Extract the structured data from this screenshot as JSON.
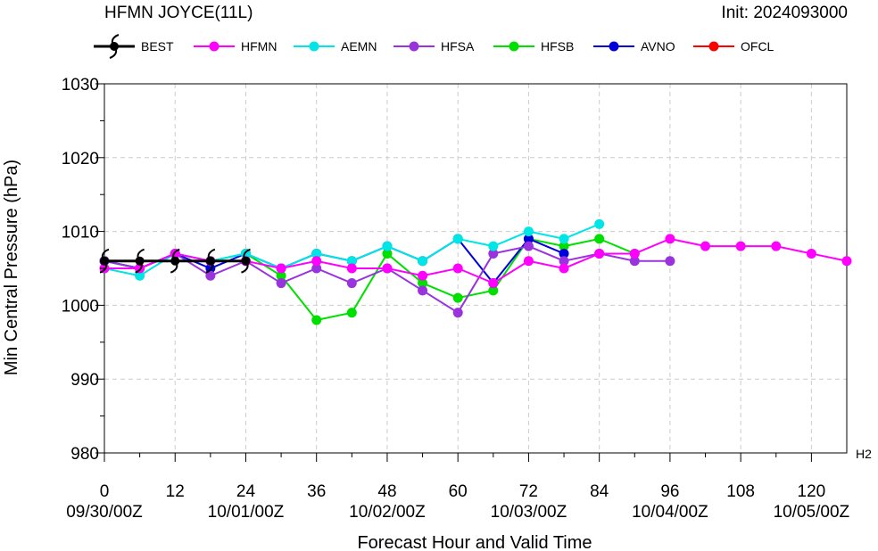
{
  "header": {
    "title": "HFMN JOYCE(11L)",
    "init": "Init: 2024093000",
    "corner_label": "H2"
  },
  "legend": [
    {
      "name": "BEST",
      "color": "#000000",
      "icon": "hurricane-symbol"
    },
    {
      "name": "HFMN",
      "color": "#ff00ff",
      "icon": "dot"
    },
    {
      "name": "AEMN",
      "color": "#00e5e5",
      "icon": "dot"
    },
    {
      "name": "HFSA",
      "color": "#9933dd",
      "icon": "dot"
    },
    {
      "name": "HFSB",
      "color": "#00e000",
      "icon": "dot"
    },
    {
      "name": "AVNO",
      "color": "#0000dd",
      "icon": "dot"
    },
    {
      "name": "OFCL",
      "color": "#ff0000",
      "icon": "dot"
    }
  ],
  "chart_data": {
    "type": "line",
    "xlabel": "Forecast Hour and Valid Time",
    "ylabel": "Min Central Pressure (hPa)",
    "xlim": [
      0,
      126
    ],
    "ylim": [
      980,
      1030
    ],
    "grid": true,
    "legend_position": "top",
    "x_ticks": [
      0,
      12,
      24,
      36,
      48,
      60,
      72,
      84,
      96,
      108,
      120
    ],
    "y_ticks": [
      980,
      990,
      1000,
      1010,
      1020,
      1030
    ],
    "date_ticks": [
      {
        "x": 0,
        "label": "09/30/00Z"
      },
      {
        "x": 24,
        "label": "10/01/00Z"
      },
      {
        "x": 48,
        "label": "10/02/00Z"
      },
      {
        "x": 72,
        "label": "10/03/00Z"
      },
      {
        "x": 96,
        "label": "10/04/00Z"
      },
      {
        "x": 120,
        "label": "10/05/00Z"
      }
    ],
    "series": [
      {
        "name": "HFSB",
        "color": "#00e000",
        "x": [
          0,
          6,
          12,
          18,
          24,
          30,
          36,
          42,
          48,
          54,
          60,
          66,
          72,
          78,
          84,
          90
        ],
        "y": [
          1006,
          1005,
          1007,
          1006,
          1007,
          1004,
          998,
          999,
          1007,
          1003,
          1001,
          1002,
          1009,
          1008,
          1009,
          1007
        ]
      },
      {
        "name": "AVNO",
        "color": "#0000dd",
        "x": [
          0,
          6,
          12,
          18,
          24,
          30,
          36,
          42,
          48,
          54,
          60,
          66,
          72,
          78
        ],
        "y": [
          1006,
          1005,
          1007,
          1005,
          1007,
          1005,
          1007,
          1006,
          1008,
          1006,
          1009,
          1003,
          1009,
          1007
        ]
      },
      {
        "name": "HFSA",
        "color": "#9933dd",
        "x": [
          0,
          6,
          12,
          18,
          24,
          30,
          36,
          42,
          48,
          54,
          60,
          66,
          72,
          78,
          84,
          90,
          96
        ],
        "y": [
          1006,
          1005,
          1007,
          1004,
          1006,
          1003,
          1005,
          1003,
          1005,
          1002,
          999,
          1007,
          1008,
          1006,
          1007,
          1006,
          1006
        ]
      },
      {
        "name": "AEMN",
        "color": "#00e5e5",
        "x": [
          0,
          6,
          12,
          18,
          24,
          30,
          36,
          42,
          48,
          54,
          60,
          66,
          72,
          78,
          84
        ],
        "y": [
          1005,
          1004,
          1007,
          1006,
          1007,
          1005,
          1007,
          1006,
          1008,
          1006,
          1009,
          1008,
          1010,
          1009,
          1011
        ]
      },
      {
        "name": "HFMN",
        "color": "#ff00ff",
        "x": [
          0,
          6,
          12,
          18,
          24,
          30,
          36,
          42,
          48,
          54,
          60,
          66,
          72,
          78,
          84,
          90,
          96,
          102,
          108,
          114,
          120,
          126
        ],
        "y": [
          1005,
          1005,
          1007,
          1006,
          1006,
          1005,
          1006,
          1005,
          1005,
          1004,
          1005,
          1003,
          1006,
          1005,
          1007,
          1007,
          1009,
          1008,
          1008,
          1008,
          1007,
          1006
        ]
      },
      {
        "name": "BEST",
        "color": "#000000",
        "marker": "hurricane",
        "x": [
          0,
          6,
          12,
          18,
          24
        ],
        "y": [
          1006,
          1006,
          1006,
          1006,
          1006
        ]
      }
    ]
  }
}
